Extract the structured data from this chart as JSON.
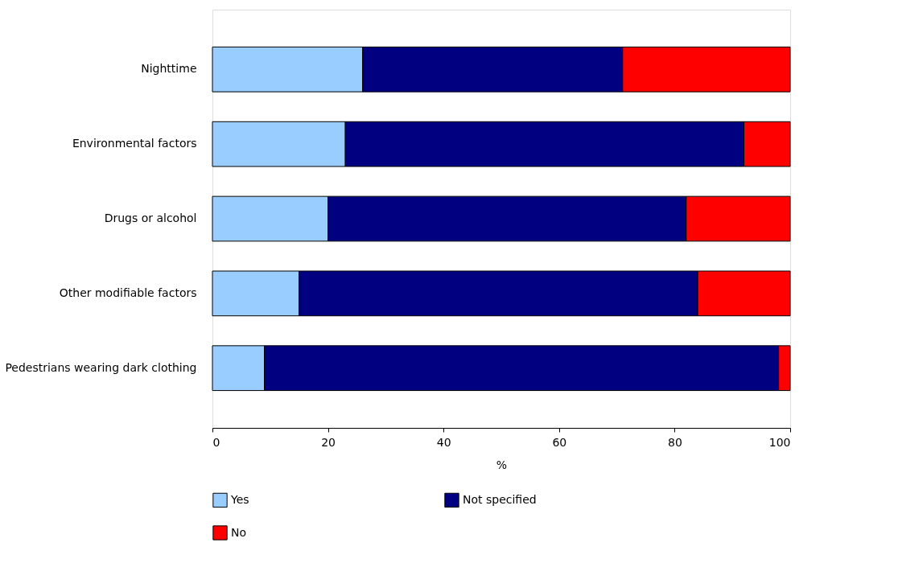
{
  "chart_data": {
    "type": "bar",
    "orientation": "horizontal",
    "stacked": true,
    "xlabel": "%",
    "categories": [
      "Nighttime",
      "Environmental factors",
      "Drugs or alcohol",
      "Other modifiable factors",
      "Pedestrians wearing dark clothing"
    ],
    "series": [
      {
        "name": "Yes",
        "color": "#99ccff",
        "values": [
          26,
          23,
          20,
          15,
          9
        ]
      },
      {
        "name": "Not specified",
        "color": "#000080",
        "values": [
          45,
          69,
          62,
          69,
          89
        ]
      },
      {
        "name": "No",
        "color": "#ff0000",
        "values": [
          29,
          8,
          18,
          16,
          2
        ]
      }
    ],
    "xlim": [
      0,
      100
    ],
    "xticks": [
      0,
      20,
      40,
      60,
      80,
      100
    ],
    "grid": false,
    "legend": "bottom"
  }
}
